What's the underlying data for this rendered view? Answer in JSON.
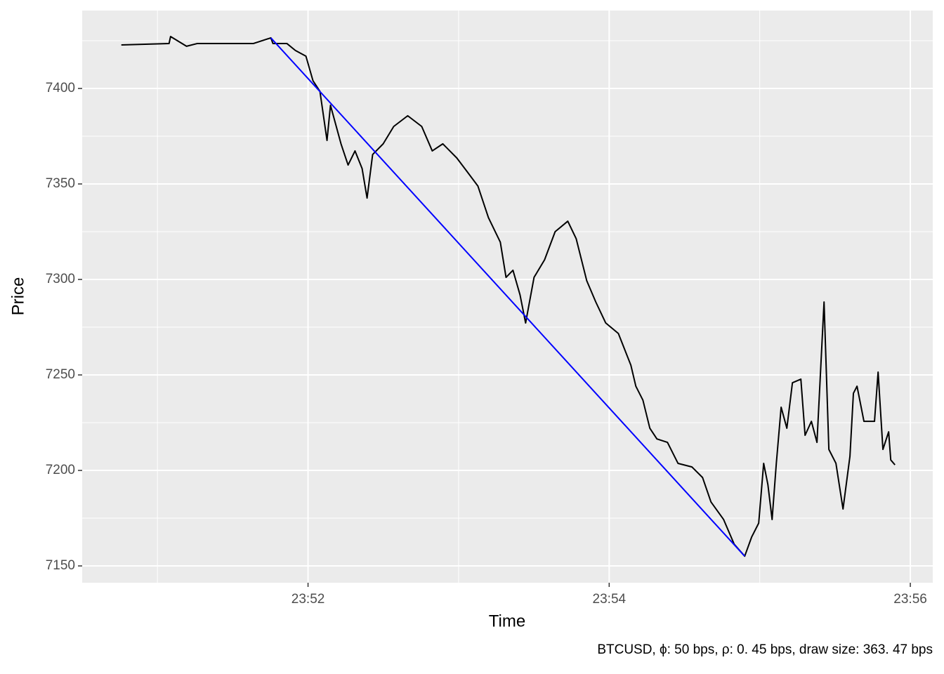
{
  "chart_data": {
    "type": "line",
    "x_label": "Time",
    "y_label": "Price",
    "caption": "BTCUSD, ϕ: 50 bps, ρ: 0. 45 bps, draw size: 363. 47 bps",
    "xlim": [
      1430.5,
      1436.149
    ],
    "xticks": [
      {
        "value": 1432,
        "label": "23:52"
      },
      {
        "value": 1434,
        "label": "23:54"
      },
      {
        "value": 1436,
        "label": "23:56"
      }
    ],
    "ylim": [
      7141.2,
      7440.8
    ],
    "yticks": [
      7150,
      7200,
      7250,
      7300,
      7350,
      7400
    ],
    "grid": true,
    "series": [
      {
        "color": "#000000",
        "x": [
          1430.76,
          1431.077,
          1431.087,
          1431.193,
          1431.263,
          1431.636,
          1431.753,
          1431.767,
          1431.86,
          1431.916,
          1431.986,
          1432.033,
          1432.079,
          1432.126,
          1432.149,
          1432.219,
          1432.266,
          1432.312,
          1432.359,
          1432.392,
          1432.429,
          1432.499,
          1432.569,
          1432.662,
          1432.755,
          1432.825,
          1432.895,
          1432.988,
          1433.058,
          1433.128,
          1433.198,
          1433.277,
          1433.315,
          1433.361,
          1433.408,
          1433.445,
          1433.501,
          1433.571,
          1433.641,
          1433.725,
          1433.781,
          1433.851,
          1433.911,
          1433.977,
          1434.061,
          1434.144,
          1434.177,
          1434.224,
          1434.27,
          1434.317,
          1434.387,
          1434.457,
          1434.55,
          1434.62,
          1434.676,
          1434.76,
          1434.83,
          1434.9,
          1434.946,
          1434.993,
          1435.026,
          1435.054,
          1435.082,
          1435.11,
          1435.142,
          1435.18,
          1435.217,
          1435.273,
          1435.301,
          1435.343,
          1435.38,
          1435.427,
          1435.459,
          1435.506,
          1435.553,
          1435.599,
          1435.622,
          1435.646,
          1435.692,
          1435.762,
          1435.786,
          1435.818,
          1435.856,
          1435.87,
          1435.898
        ],
        "values": [
          7422.8,
          7423.5,
          7427.2,
          7422.1,
          7423.5,
          7423.5,
          7426.5,
          7423.5,
          7423.5,
          7419.9,
          7416.9,
          7404.0,
          7398.5,
          7372.8,
          7391.2,
          7371.0,
          7359.9,
          7367.3,
          7358.1,
          7342.6,
          7365.4,
          7371.0,
          7380.1,
          7385.7,
          7380.1,
          7367.3,
          7371.0,
          7363.6,
          7356.3,
          7348.9,
          7332.4,
          7319.5,
          7301.1,
          7304.8,
          7291.9,
          7277.2,
          7301.1,
          7310.3,
          7325.0,
          7330.5,
          7321.3,
          7299.3,
          7288.2,
          7277.2,
          7271.7,
          7255.1,
          7244.1,
          7236.8,
          7222.1,
          7216.5,
          7214.7,
          7203.7,
          7201.8,
          7196.3,
          7183.5,
          7174.3,
          7161.4,
          7155.1,
          7165.1,
          7172.4,
          7203.7,
          7192.6,
          7174.3,
          7203.7,
          7233.1,
          7222.1,
          7245.9,
          7247.8,
          7218.4,
          7225.7,
          7214.7,
          7288.2,
          7211.0,
          7203.7,
          7179.8,
          7207.4,
          7240.4,
          7244.1,
          7225.7,
          7225.7,
          7251.5,
          7211.0,
          7220.2,
          7205.5,
          7202.9
        ]
      },
      {
        "color": "#0000FF",
        "x": [
          1431.753,
          1434.9
        ],
        "values": [
          7426.5,
          7155.1
        ]
      }
    ]
  }
}
